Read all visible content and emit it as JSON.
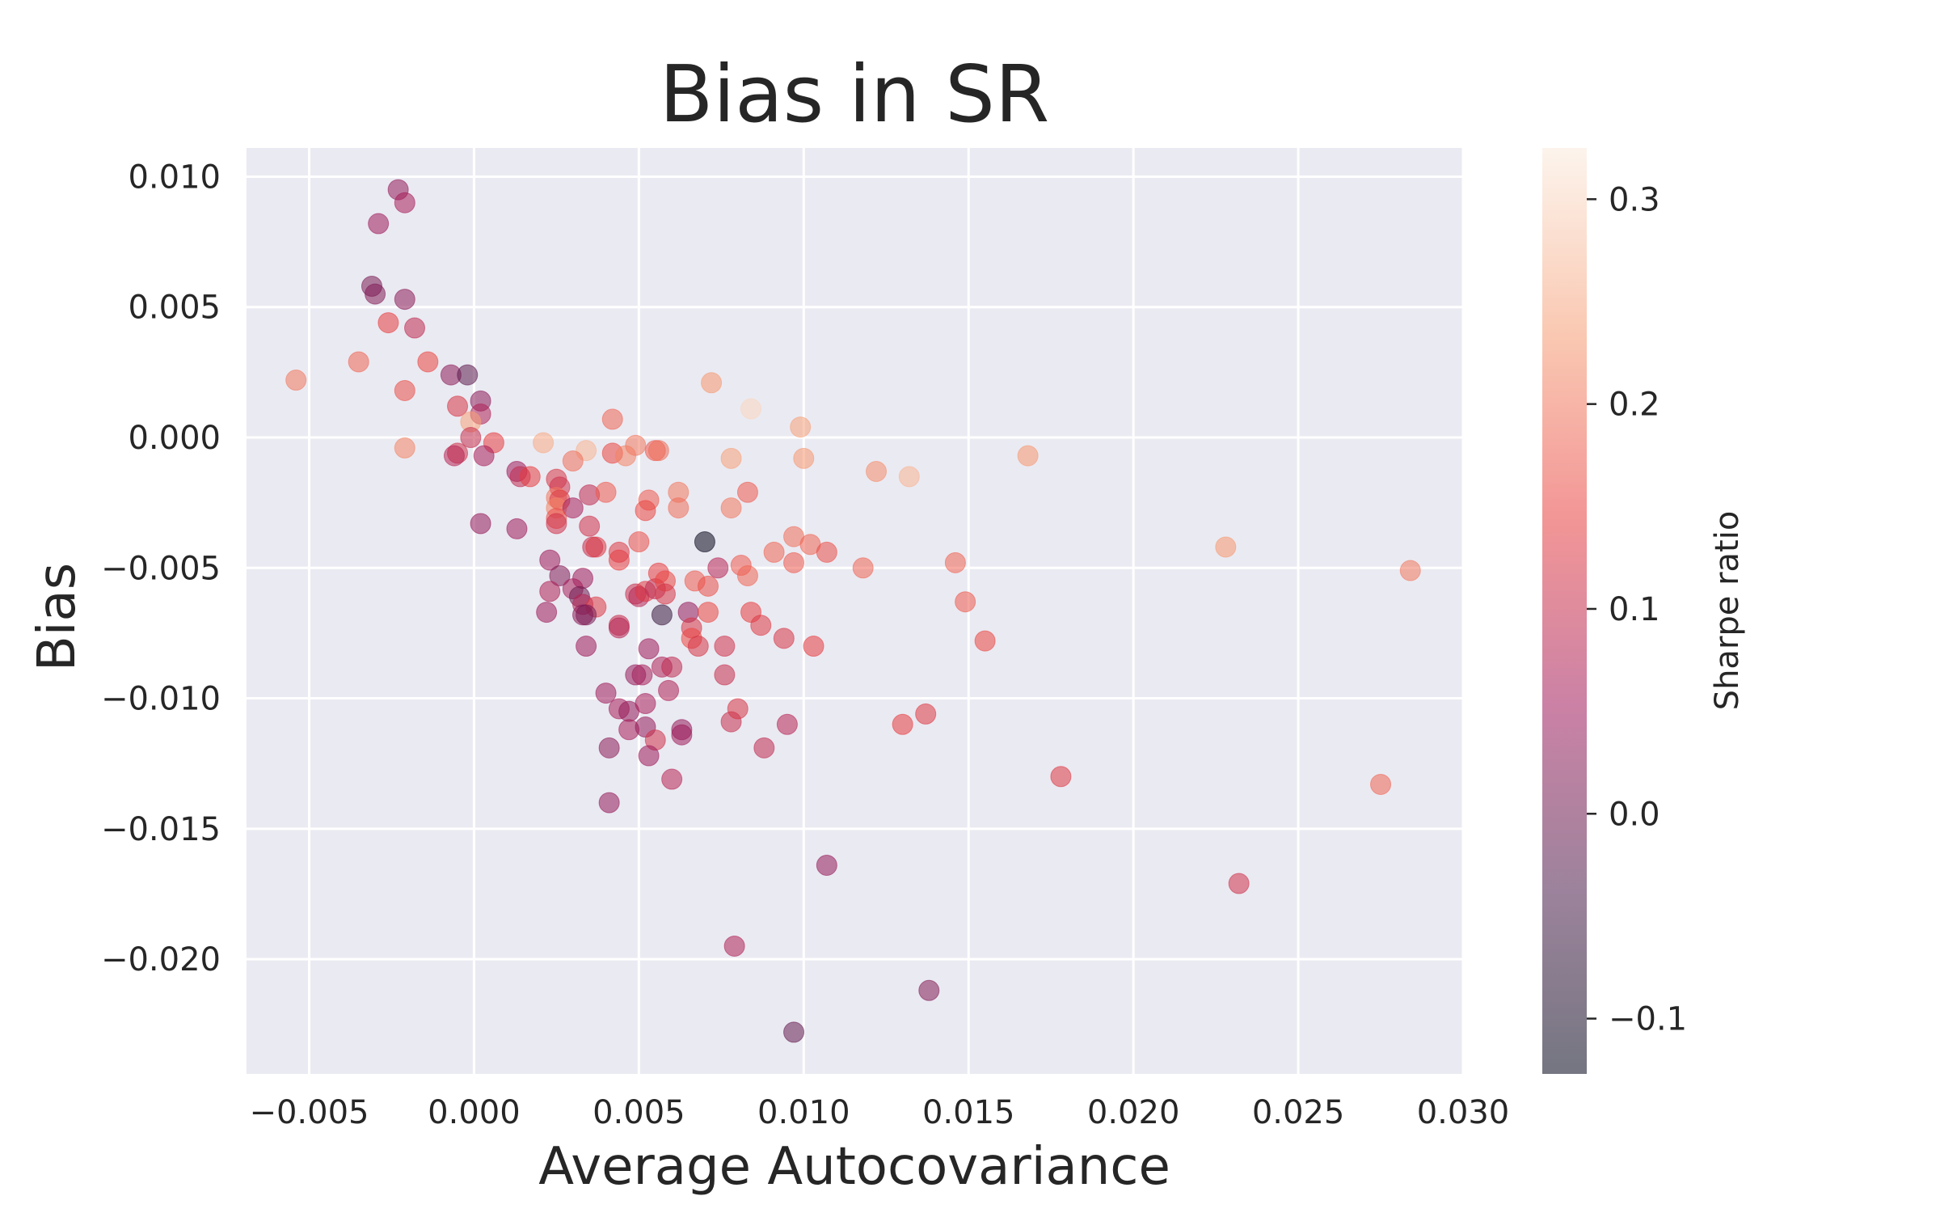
{
  "chart_data": {
    "type": "scatter",
    "title": "Bias in SR",
    "xlabel": "Average Autocovariance",
    "ylabel": "Bias",
    "xlim": [
      -0.0069,
      0.03
    ],
    "ylim": [
      -0.0244,
      0.0111
    ],
    "xticks": [
      -0.005,
      0.0,
      0.005,
      0.01,
      0.015,
      0.02,
      0.025,
      0.03
    ],
    "xtick_labels": [
      "−0.005",
      "0.000",
      "0.005",
      "0.010",
      "0.015",
      "0.020",
      "0.025",
      "0.030"
    ],
    "yticks": [
      0.01,
      0.005,
      0.0,
      -0.005,
      -0.01,
      -0.015,
      -0.02
    ],
    "ytick_labels": [
      "0.010",
      "0.005",
      "0.000",
      "−0.005",
      "−0.010",
      "−0.015",
      "−0.020"
    ],
    "grid": true,
    "colorbar": {
      "label": "Sharpe ratio",
      "range": [
        -0.127,
        0.325
      ],
      "ticks": [
        0.3,
        0.2,
        0.1,
        0.0,
        -0.1
      ],
      "tick_labels": [
        "0.3",
        "0.2",
        "0.1",
        "0.0",
        "−0.1"
      ],
      "colormap": [
        "#03051a",
        "#4c1d4b",
        "#a11a5b",
        "#e83f3f",
        "#f69c73",
        "#faebdd"
      ]
    },
    "points": [
      {
        "x": -0.0054,
        "y": 0.0022,
        "c": 0.2
      },
      {
        "x": -0.0023,
        "y": 0.0095,
        "c": 0.04
      },
      {
        "x": -0.0021,
        "y": 0.009,
        "c": 0.06
      },
      {
        "x": -0.0029,
        "y": 0.0082,
        "c": 0.05
      },
      {
        "x": -0.0031,
        "y": 0.0058,
        "c": 0.01
      },
      {
        "x": -0.003,
        "y": 0.0055,
        "c": 0.02
      },
      {
        "x": -0.0021,
        "y": 0.0053,
        "c": 0.03
      },
      {
        "x": -0.0026,
        "y": 0.0044,
        "c": 0.14
      },
      {
        "x": -0.0018,
        "y": 0.0042,
        "c": 0.09
      },
      {
        "x": -0.0035,
        "y": 0.0029,
        "c": 0.18
      },
      {
        "x": -0.0014,
        "y": 0.0029,
        "c": 0.15
      },
      {
        "x": -0.0007,
        "y": 0.0024,
        "c": 0.03
      },
      {
        "x": -0.0002,
        "y": 0.0024,
        "c": -0.02
      },
      {
        "x": -0.0021,
        "y": 0.0018,
        "c": 0.16
      },
      {
        "x": 0.0002,
        "y": 0.0014,
        "c": 0.03
      },
      {
        "x": -0.0005,
        "y": 0.0012,
        "c": 0.12
      },
      {
        "x": 0.0002,
        "y": 0.0009,
        "c": 0.07
      },
      {
        "x": -0.0001,
        "y": 0.0006,
        "c": 0.24
      },
      {
        "x": -0.0001,
        "y": 0.0,
        "c": 0.1
      },
      {
        "x": 0.0006,
        "y": -0.0002,
        "c": 0.14
      },
      {
        "x": -0.0021,
        "y": -0.0004,
        "c": 0.21
      },
      {
        "x": -0.0005,
        "y": -0.0006,
        "c": 0.11
      },
      {
        "x": -0.0006,
        "y": -0.0007,
        "c": 0.08
      },
      {
        "x": 0.0003,
        "y": -0.0007,
        "c": 0.06
      },
      {
        "x": 0.0013,
        "y": -0.0013,
        "c": 0.05
      },
      {
        "x": 0.0014,
        "y": -0.0015,
        "c": 0.09
      },
      {
        "x": 0.0017,
        "y": -0.0015,
        "c": 0.14
      },
      {
        "x": 0.0002,
        "y": -0.0033,
        "c": 0.04
      },
      {
        "x": 0.0013,
        "y": -0.0035,
        "c": 0.05
      },
      {
        "x": 0.0021,
        "y": -0.0002,
        "c": 0.25
      },
      {
        "x": 0.0034,
        "y": -0.0005,
        "c": 0.26
      },
      {
        "x": 0.003,
        "y": -0.0009,
        "c": 0.19
      },
      {
        "x": 0.0042,
        "y": 0.0007,
        "c": 0.18
      },
      {
        "x": 0.0042,
        "y": -0.0006,
        "c": 0.15
      },
      {
        "x": 0.0046,
        "y": -0.0007,
        "c": 0.21
      },
      {
        "x": 0.0049,
        "y": -0.0003,
        "c": 0.2
      },
      {
        "x": 0.0055,
        "y": -0.0005,
        "c": 0.17
      },
      {
        "x": 0.0056,
        "y": -0.0005,
        "c": 0.19
      },
      {
        "x": 0.0025,
        "y": -0.0016,
        "c": 0.12
      },
      {
        "x": 0.0026,
        "y": -0.0019,
        "c": 0.11
      },
      {
        "x": 0.0025,
        "y": -0.0023,
        "c": 0.2
      },
      {
        "x": 0.0026,
        "y": -0.0024,
        "c": 0.13
      },
      {
        "x": 0.0025,
        "y": -0.0027,
        "c": 0.21
      },
      {
        "x": 0.003,
        "y": -0.0027,
        "c": 0.06
      },
      {
        "x": 0.0025,
        "y": -0.0031,
        "c": 0.16
      },
      {
        "x": 0.0025,
        "y": -0.0033,
        "c": 0.11
      },
      {
        "x": 0.0035,
        "y": -0.0022,
        "c": 0.09
      },
      {
        "x": 0.004,
        "y": -0.0021,
        "c": 0.17
      },
      {
        "x": 0.0053,
        "y": -0.0024,
        "c": 0.17
      },
      {
        "x": 0.0052,
        "y": -0.0028,
        "c": 0.15
      },
      {
        "x": 0.0062,
        "y": -0.0021,
        "c": 0.2
      },
      {
        "x": 0.0062,
        "y": -0.0027,
        "c": 0.19
      },
      {
        "x": 0.0035,
        "y": -0.0034,
        "c": 0.11
      },
      {
        "x": 0.0036,
        "y": -0.0042,
        "c": 0.1
      },
      {
        "x": 0.0037,
        "y": -0.0042,
        "c": 0.13
      },
      {
        "x": 0.0044,
        "y": -0.0044,
        "c": 0.13
      },
      {
        "x": 0.0044,
        "y": -0.0047,
        "c": 0.14
      },
      {
        "x": 0.005,
        "y": -0.004,
        "c": 0.16
      },
      {
        "x": 0.007,
        "y": -0.004,
        "c": -0.12
      },
      {
        "x": 0.0023,
        "y": -0.0047,
        "c": 0.05
      },
      {
        "x": 0.0026,
        "y": -0.0053,
        "c": 0.02
      },
      {
        "x": 0.0033,
        "y": -0.0054,
        "c": 0.05
      },
      {
        "x": 0.0023,
        "y": -0.0059,
        "c": 0.07
      },
      {
        "x": 0.003,
        "y": -0.0058,
        "c": 0.06
      },
      {
        "x": 0.0032,
        "y": -0.0061,
        "c": 0.0
      },
      {
        "x": 0.0033,
        "y": -0.0064,
        "c": 0.08
      },
      {
        "x": 0.0037,
        "y": -0.0065,
        "c": 0.13
      },
      {
        "x": 0.0022,
        "y": -0.0067,
        "c": 0.05
      },
      {
        "x": 0.0033,
        "y": -0.0068,
        "c": 0.03
      },
      {
        "x": 0.0034,
        "y": -0.0068,
        "c": 0.01
      },
      {
        "x": 0.0044,
        "y": -0.0072,
        "c": 0.1
      },
      {
        "x": 0.0044,
        "y": -0.0073,
        "c": 0.08
      },
      {
        "x": 0.0034,
        "y": -0.008,
        "c": 0.05
      },
      {
        "x": 0.0049,
        "y": -0.006,
        "c": 0.1
      },
      {
        "x": 0.005,
        "y": -0.0061,
        "c": 0.08
      },
      {
        "x": 0.0052,
        "y": -0.0059,
        "c": 0.13
      },
      {
        "x": 0.0055,
        "y": -0.0058,
        "c": 0.09
      },
      {
        "x": 0.0056,
        "y": -0.0052,
        "c": 0.14
      },
      {
        "x": 0.0058,
        "y": -0.0055,
        "c": 0.15
      },
      {
        "x": 0.0058,
        "y": -0.006,
        "c": 0.12
      },
      {
        "x": 0.0057,
        "y": -0.0068,
        "c": -0.06
      },
      {
        "x": 0.0065,
        "y": -0.0067,
        "c": 0.04
      },
      {
        "x": 0.0066,
        "y": -0.0073,
        "c": 0.12
      },
      {
        "x": 0.0066,
        "y": -0.0077,
        "c": 0.15
      },
      {
        "x": 0.0068,
        "y": -0.008,
        "c": 0.12
      },
      {
        "x": 0.0067,
        "y": -0.0055,
        "c": 0.17
      },
      {
        "x": 0.0071,
        "y": -0.0057,
        "c": 0.16
      },
      {
        "x": 0.0071,
        "y": -0.0067,
        "c": 0.15
      },
      {
        "x": 0.0074,
        "y": -0.005,
        "c": 0.08
      },
      {
        "x": 0.0053,
        "y": -0.0081,
        "c": 0.05
      },
      {
        "x": 0.0049,
        "y": -0.0091,
        "c": 0.04
      },
      {
        "x": 0.0051,
        "y": -0.0091,
        "c": 0.06
      },
      {
        "x": 0.0057,
        "y": -0.0088,
        "c": 0.07
      },
      {
        "x": 0.006,
        "y": -0.0088,
        "c": 0.09
      },
      {
        "x": 0.004,
        "y": -0.0098,
        "c": 0.05
      },
      {
        "x": 0.0044,
        "y": -0.0104,
        "c": 0.06
      },
      {
        "x": 0.0047,
        "y": -0.0105,
        "c": 0.04
      },
      {
        "x": 0.0052,
        "y": -0.0102,
        "c": 0.06
      },
      {
        "x": 0.0059,
        "y": -0.0097,
        "c": 0.07
      },
      {
        "x": 0.0047,
        "y": -0.0112,
        "c": 0.06
      },
      {
        "x": 0.0052,
        "y": -0.0111,
        "c": 0.04
      },
      {
        "x": 0.0055,
        "y": -0.0116,
        "c": 0.11
      },
      {
        "x": 0.0041,
        "y": -0.0119,
        "c": 0.03
      },
      {
        "x": 0.0053,
        "y": -0.0122,
        "c": 0.05
      },
      {
        "x": 0.0063,
        "y": -0.0112,
        "c": 0.04
      },
      {
        "x": 0.0063,
        "y": -0.0114,
        "c": 0.05
      },
      {
        "x": 0.006,
        "y": -0.0131,
        "c": 0.08
      },
      {
        "x": 0.0041,
        "y": -0.014,
        "c": 0.04
      },
      {
        "x": 0.0076,
        "y": -0.008,
        "c": 0.11
      },
      {
        "x": 0.0076,
        "y": -0.0091,
        "c": 0.1
      },
      {
        "x": 0.0078,
        "y": -0.0109,
        "c": 0.1
      },
      {
        "x": 0.008,
        "y": -0.0104,
        "c": 0.12
      },
      {
        "x": 0.0079,
        "y": -0.0195,
        "c": 0.07
      },
      {
        "x": 0.0072,
        "y": 0.0021,
        "c": 0.23
      },
      {
        "x": 0.0084,
        "y": 0.0011,
        "c": 0.3
      },
      {
        "x": 0.0099,
        "y": 0.0004,
        "c": 0.24
      },
      {
        "x": 0.0078,
        "y": -0.0008,
        "c": 0.24
      },
      {
        "x": 0.01,
        "y": -0.0008,
        "c": 0.23
      },
      {
        "x": 0.0078,
        "y": -0.0027,
        "c": 0.2
      },
      {
        "x": 0.0083,
        "y": -0.0021,
        "c": 0.17
      },
      {
        "x": 0.0081,
        "y": -0.0049,
        "c": 0.17
      },
      {
        "x": 0.0083,
        "y": -0.0053,
        "c": 0.18
      },
      {
        "x": 0.0084,
        "y": -0.0067,
        "c": 0.14
      },
      {
        "x": 0.0087,
        "y": -0.0072,
        "c": 0.13
      },
      {
        "x": 0.0091,
        "y": -0.0044,
        "c": 0.18
      },
      {
        "x": 0.0097,
        "y": -0.0038,
        "c": 0.19
      },
      {
        "x": 0.0102,
        "y": -0.0041,
        "c": 0.18
      },
      {
        "x": 0.0097,
        "y": -0.0048,
        "c": 0.17
      },
      {
        "x": 0.0107,
        "y": -0.0044,
        "c": 0.16
      },
      {
        "x": 0.0094,
        "y": -0.0077,
        "c": 0.12
      },
      {
        "x": 0.0103,
        "y": -0.008,
        "c": 0.14
      },
      {
        "x": 0.0088,
        "y": -0.0119,
        "c": 0.09
      },
      {
        "x": 0.0095,
        "y": -0.011,
        "c": 0.08
      },
      {
        "x": 0.0107,
        "y": -0.0164,
        "c": 0.04
      },
      {
        "x": 0.0097,
        "y": -0.0228,
        "c": -0.01
      },
      {
        "x": 0.0118,
        "y": -0.005,
        "c": 0.18
      },
      {
        "x": 0.0122,
        "y": -0.0013,
        "c": 0.22
      },
      {
        "x": 0.0132,
        "y": -0.0015,
        "c": 0.26
      },
      {
        "x": 0.013,
        "y": -0.011,
        "c": 0.14
      },
      {
        "x": 0.0137,
        "y": -0.0106,
        "c": 0.13
      },
      {
        "x": 0.0138,
        "y": -0.0212,
        "c": 0.02
      },
      {
        "x": 0.0146,
        "y": -0.0048,
        "c": 0.18
      },
      {
        "x": 0.0149,
        "y": -0.0063,
        "c": 0.17
      },
      {
        "x": 0.0155,
        "y": -0.0078,
        "c": 0.15
      },
      {
        "x": 0.0168,
        "y": -0.0007,
        "c": 0.23
      },
      {
        "x": 0.0178,
        "y": -0.013,
        "c": 0.13
      },
      {
        "x": 0.0228,
        "y": -0.0042,
        "c": 0.23
      },
      {
        "x": 0.0232,
        "y": -0.0171,
        "c": 0.11
      },
      {
        "x": 0.0275,
        "y": -0.0133,
        "c": 0.18
      },
      {
        "x": 0.0284,
        "y": -0.0051,
        "c": 0.2
      }
    ]
  }
}
